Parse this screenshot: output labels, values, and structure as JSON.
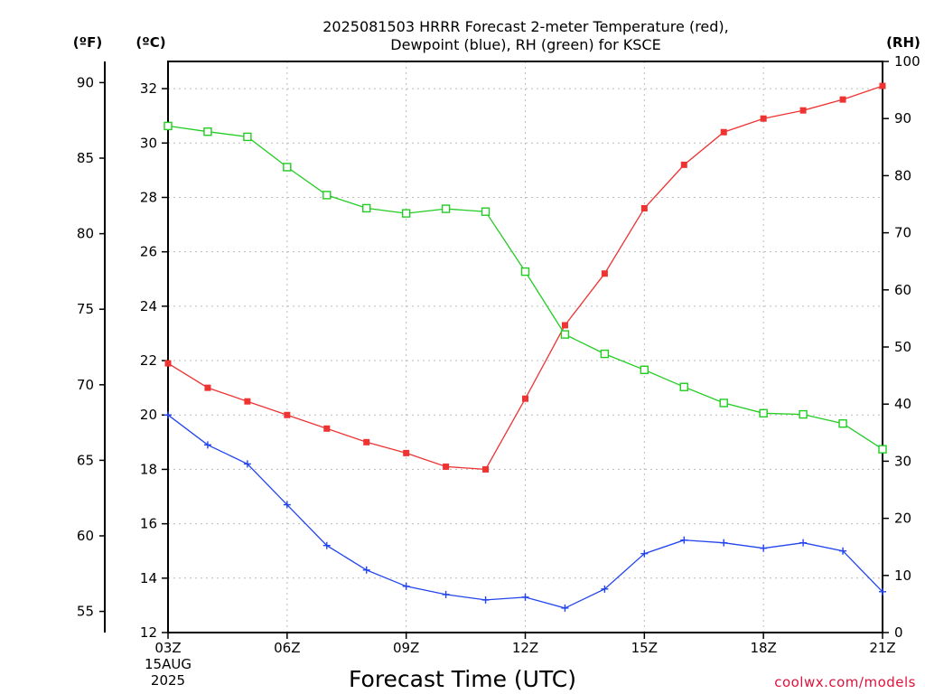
{
  "chart_data": {
    "type": "line",
    "title_lines": [
      "2025081503 HRRR Forecast 2-meter Temperature (red),",
      "Dewpoint (blue), RH (green) for KSCE"
    ],
    "xlabel": "Forecast Time (UTC)",
    "x_start_labels": [
      "15AUG",
      "2025"
    ],
    "credit": "coolwx.com/models",
    "units": {
      "fahrenheit": "(ºF)",
      "celsius": "(ºC)",
      "rh": "(RH)"
    },
    "grid": true,
    "x_hours": [
      3,
      4,
      5,
      6,
      7,
      8,
      9,
      10,
      11,
      12,
      13,
      14,
      15,
      16,
      17,
      18,
      19,
      20,
      21
    ],
    "x_ticks": [
      {
        "hour": 3,
        "label": "03Z"
      },
      {
        "hour": 6,
        "label": "06Z"
      },
      {
        "hour": 9,
        "label": "09Z"
      },
      {
        "hour": 12,
        "label": "12Z"
      },
      {
        "hour": 15,
        "label": "15Z"
      },
      {
        "hour": 18,
        "label": "18Z"
      },
      {
        "hour": 21,
        "label": "21Z"
      }
    ],
    "xlim": [
      3,
      21
    ],
    "celsius_axis": {
      "ylim": [
        12,
        33
      ],
      "ticks": [
        12,
        14,
        16,
        18,
        20,
        22,
        24,
        26,
        28,
        30,
        32
      ]
    },
    "fahrenheit_axis": {
      "ylim": [
        53.6,
        91.4
      ],
      "ticks": [
        55,
        60,
        65,
        70,
        75,
        80,
        85,
        90
      ]
    },
    "rh_axis": {
      "ylim": [
        0,
        100
      ],
      "ticks": [
        0,
        10,
        20,
        30,
        40,
        50,
        60,
        70,
        80,
        90,
        100
      ]
    },
    "series": [
      {
        "name": "Temperature",
        "color": "#ee3333",
        "marker": "filled-square",
        "axis": "celsius",
        "values": [
          21.9,
          21.0,
          20.5,
          20.0,
          19.5,
          19.0,
          18.6,
          18.1,
          18.0,
          20.6,
          23.3,
          25.2,
          27.6,
          29.2,
          30.4,
          30.9,
          31.2,
          31.6,
          32.1
        ]
      },
      {
        "name": "Dewpoint",
        "color": "#2244ee",
        "marker": "plus",
        "axis": "celsius",
        "values": [
          20.0,
          18.9,
          18.2,
          16.7,
          15.2,
          14.3,
          13.7,
          13.4,
          13.2,
          13.3,
          12.9,
          13.6,
          14.9,
          15.4,
          15.3,
          15.1,
          15.3,
          15.0,
          13.5
        ]
      },
      {
        "name": "RH",
        "color": "#22cc22",
        "marker": "open-square",
        "axis": "rh",
        "values": [
          88.7,
          87.7,
          86.8,
          81.5,
          76.6,
          74.3,
          73.4,
          74.2,
          73.7,
          63.2,
          52.2,
          48.8,
          46.0,
          43.0,
          40.2,
          38.4,
          38.2,
          36.6,
          32.1
        ]
      }
    ]
  }
}
